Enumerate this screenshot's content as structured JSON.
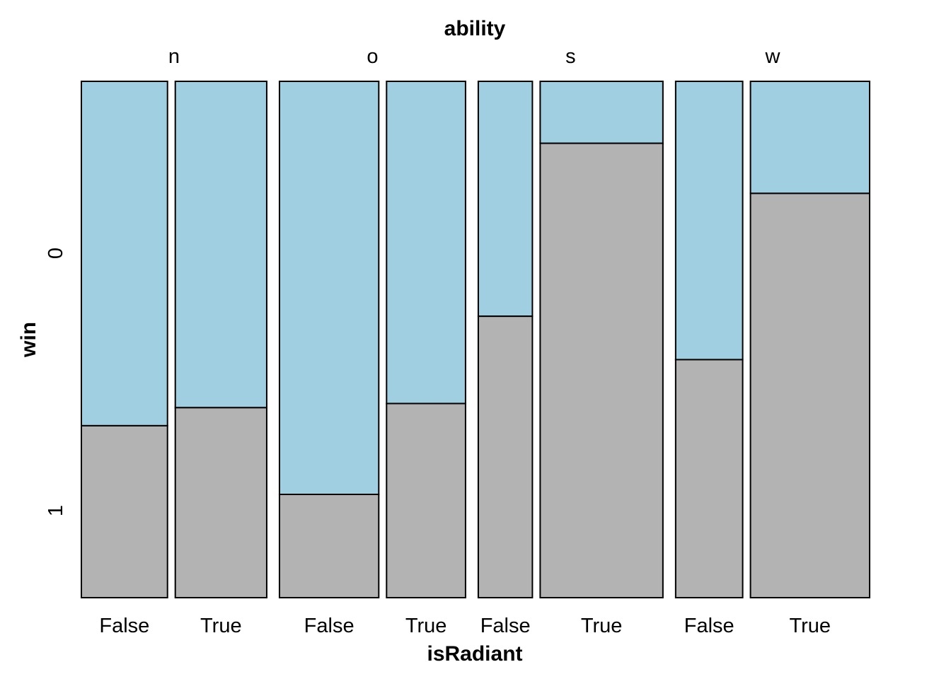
{
  "chart_data": {
    "type": "mosaic",
    "top_label": "ability",
    "xlabel": "isRadiant",
    "ylabel": "win",
    "y_levels": [
      "0",
      "1"
    ],
    "x_levels": [
      "False",
      "True"
    ],
    "colors": {
      "0": "#9fcfe0",
      "1": "#b3b3b3"
    },
    "groups": [
      {
        "name": "n",
        "cells": [
          {
            "label": "False",
            "width_share": 0.485,
            "proportion_win_1": 0.333
          },
          {
            "label": "True",
            "width_share": 0.515,
            "proportion_win_1": 0.368
          }
        ]
      },
      {
        "name": "o",
        "cells": [
          {
            "label": "False",
            "width_share": 0.557,
            "proportion_win_1": 0.2
          },
          {
            "label": "True",
            "width_share": 0.443,
            "proportion_win_1": 0.376
          }
        ]
      },
      {
        "name": "s",
        "cells": [
          {
            "label": "False",
            "width_share": 0.306,
            "proportion_win_1": 0.545
          },
          {
            "label": "True",
            "width_share": 0.694,
            "proportion_win_1": 0.88
          }
        ]
      },
      {
        "name": "w",
        "cells": [
          {
            "label": "False",
            "width_share": 0.36,
            "proportion_win_1": 0.461
          },
          {
            "label": "True",
            "width_share": 0.64,
            "proportion_win_1": 0.783
          }
        ]
      }
    ],
    "group_width_shares": [
      0.247,
      0.248,
      0.246,
      0.259
    ]
  }
}
